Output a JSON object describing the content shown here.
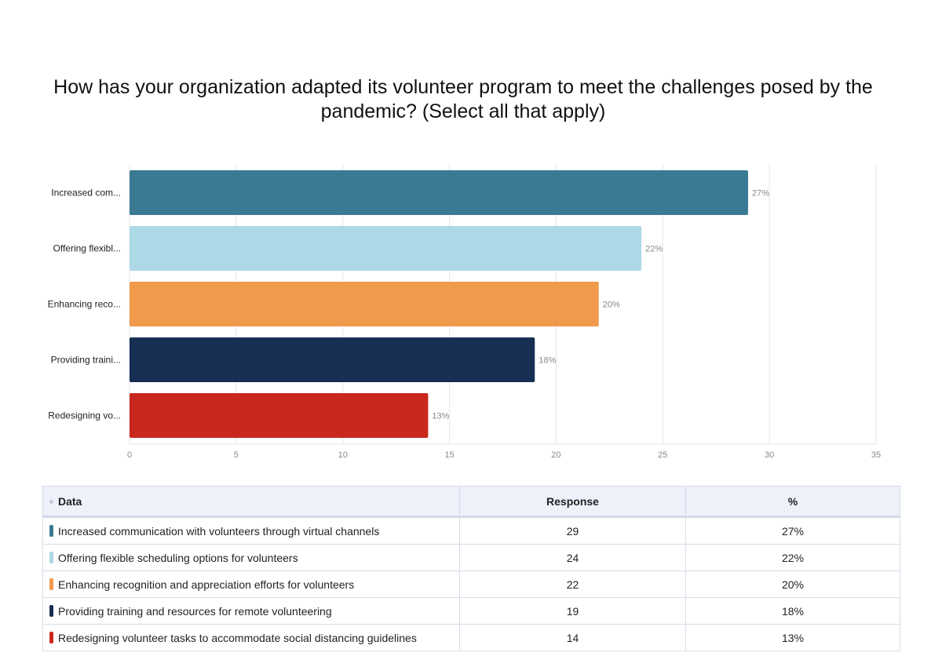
{
  "title": "How has your organization adapted its volunteer program to meet the challenges posed by the pandemic? (Select all that apply)",
  "chart_data": {
    "type": "bar",
    "orientation": "horizontal",
    "categories": [
      "Increased com...",
      "Offering flexibl...",
      "Enhancing reco...",
      "Providing traini...",
      "Redesigning vo..."
    ],
    "values": [
      29,
      24,
      22,
      19,
      14
    ],
    "value_labels": [
      "27%",
      "22%",
      "20%",
      "18%",
      "13%"
    ],
    "colors": [
      "#3b7a93",
      "#add8e6",
      "#f09a4c",
      "#182f54",
      "#c8281e"
    ],
    "xlim": [
      0,
      35
    ],
    "xticks": [
      0,
      5,
      10,
      15,
      20,
      25,
      30,
      35
    ],
    "grid": true
  },
  "table": {
    "headers": [
      "Data",
      "Response",
      "%"
    ],
    "rows": [
      {
        "label": "Increased communication with volunteers through virtual channels",
        "response": "29",
        "percent": "27%"
      },
      {
        "label": "Offering flexible scheduling options for volunteers",
        "response": "24",
        "percent": "22%"
      },
      {
        "label": "Enhancing recognition and appreciation efforts for volunteers",
        "response": "22",
        "percent": "20%"
      },
      {
        "label": "Providing training and resources for remote volunteering",
        "response": "19",
        "percent": "18%"
      },
      {
        "label": "Redesigning volunteer tasks to accommodate social distancing guidelines",
        "response": "14",
        "percent": "13%"
      }
    ]
  }
}
